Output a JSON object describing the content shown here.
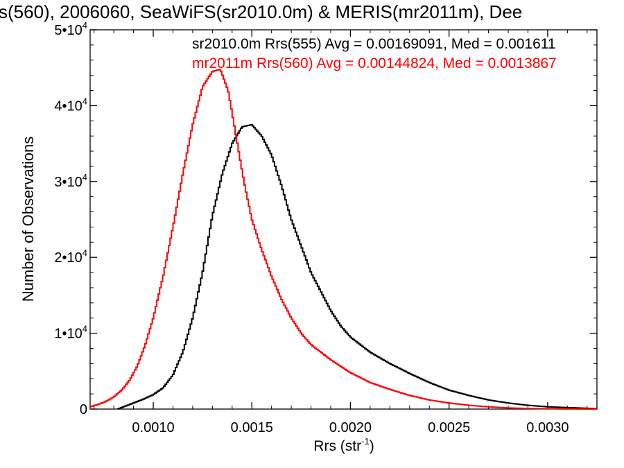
{
  "chart_data": {
    "type": "line",
    "title": "s(560), 2006060, SeaWiFS(sr2010.0m) & MERIS(mr2011m), Dee",
    "xlabel": "Rrs (str",
    "xlabel_sup": "-1",
    "xlabel_close": ")",
    "ylabel": "Number of Observations",
    "xlim": [
      0.00068,
      0.00325
    ],
    "ylim": [
      0,
      50000
    ],
    "x_ticks": [
      {
        "value": 0.001,
        "label": "0.0010"
      },
      {
        "value": 0.0015,
        "label": "0.0015"
      },
      {
        "value": 0.002,
        "label": "0.0020"
      },
      {
        "value": 0.0025,
        "label": "0.0025"
      },
      {
        "value": 0.003,
        "label": "0.0030"
      }
    ],
    "y_ticks": [
      {
        "value": 0,
        "label": "0",
        "exp": ""
      },
      {
        "value": 10000,
        "label": "1•10",
        "exp": "4"
      },
      {
        "value": 20000,
        "label": "2•10",
        "exp": "4"
      },
      {
        "value": 30000,
        "label": "3•10",
        "exp": "4"
      },
      {
        "value": 40000,
        "label": "4•10",
        "exp": "4"
      },
      {
        "value": 50000,
        "label": "5•10",
        "exp": "4"
      }
    ],
    "legend_placement": "top-right",
    "series": [
      {
        "name": "sr2010.0m Rrs(555) Avg = 0.00169091, Med = 0.001611",
        "color": "#000000",
        "x": [
          0.00082,
          0.00085,
          0.0009,
          0.00095,
          0.001,
          0.00105,
          0.0011,
          0.00115,
          0.0012,
          0.00125,
          0.0013,
          0.00135,
          0.0014,
          0.00145,
          0.0015,
          0.00155,
          0.0016,
          0.00165,
          0.0017,
          0.00175,
          0.0018,
          0.00185,
          0.0019,
          0.00195,
          0.002,
          0.0021,
          0.0022,
          0.0023,
          0.0024,
          0.0025,
          0.0026,
          0.0027,
          0.0028,
          0.0029,
          0.003,
          0.0031,
          0.0032,
          0.00325
        ],
        "y": [
          0,
          300,
          800,
          1300,
          1900,
          2800,
          4500,
          7500,
          12000,
          18000,
          25500,
          31000,
          35000,
          37200,
          37500,
          36000,
          33500,
          29500,
          25000,
          21500,
          18000,
          15500,
          13000,
          11000,
          9500,
          7500,
          6000,
          4700,
          3500,
          2500,
          1800,
          1200,
          800,
          500,
          300,
          200,
          100,
          50
        ]
      },
      {
        "name": "mr2011m Rrs(560) Avg = 0.00144824, Med = 0.0013867",
        "color": "#ff0000",
        "x": [
          0.00068,
          0.00072,
          0.00076,
          0.0008,
          0.00084,
          0.00088,
          0.00092,
          0.00096,
          0.001,
          0.00105,
          0.0011,
          0.00115,
          0.0012,
          0.00125,
          0.0013,
          0.00134,
          0.00138,
          0.00142,
          0.00146,
          0.0015,
          0.00155,
          0.0016,
          0.00165,
          0.0017,
          0.00175,
          0.0018,
          0.0019,
          0.002,
          0.0021,
          0.0022,
          0.0023,
          0.0024,
          0.0025,
          0.0026,
          0.0027,
          0.0028,
          0.0029,
          0.003,
          0.0031,
          0.00325
        ],
        "y": [
          300,
          600,
          1000,
          1600,
          2500,
          3800,
          5700,
          8500,
          12000,
          17500,
          24000,
          31000,
          37500,
          42500,
          44500,
          44800,
          42000,
          36000,
          30000,
          25000,
          21000,
          17500,
          14500,
          12000,
          10000,
          8500,
          6500,
          4800,
          3500,
          2600,
          1800,
          1200,
          800,
          500,
          300,
          150,
          80,
          40,
          20,
          10
        ]
      }
    ]
  }
}
